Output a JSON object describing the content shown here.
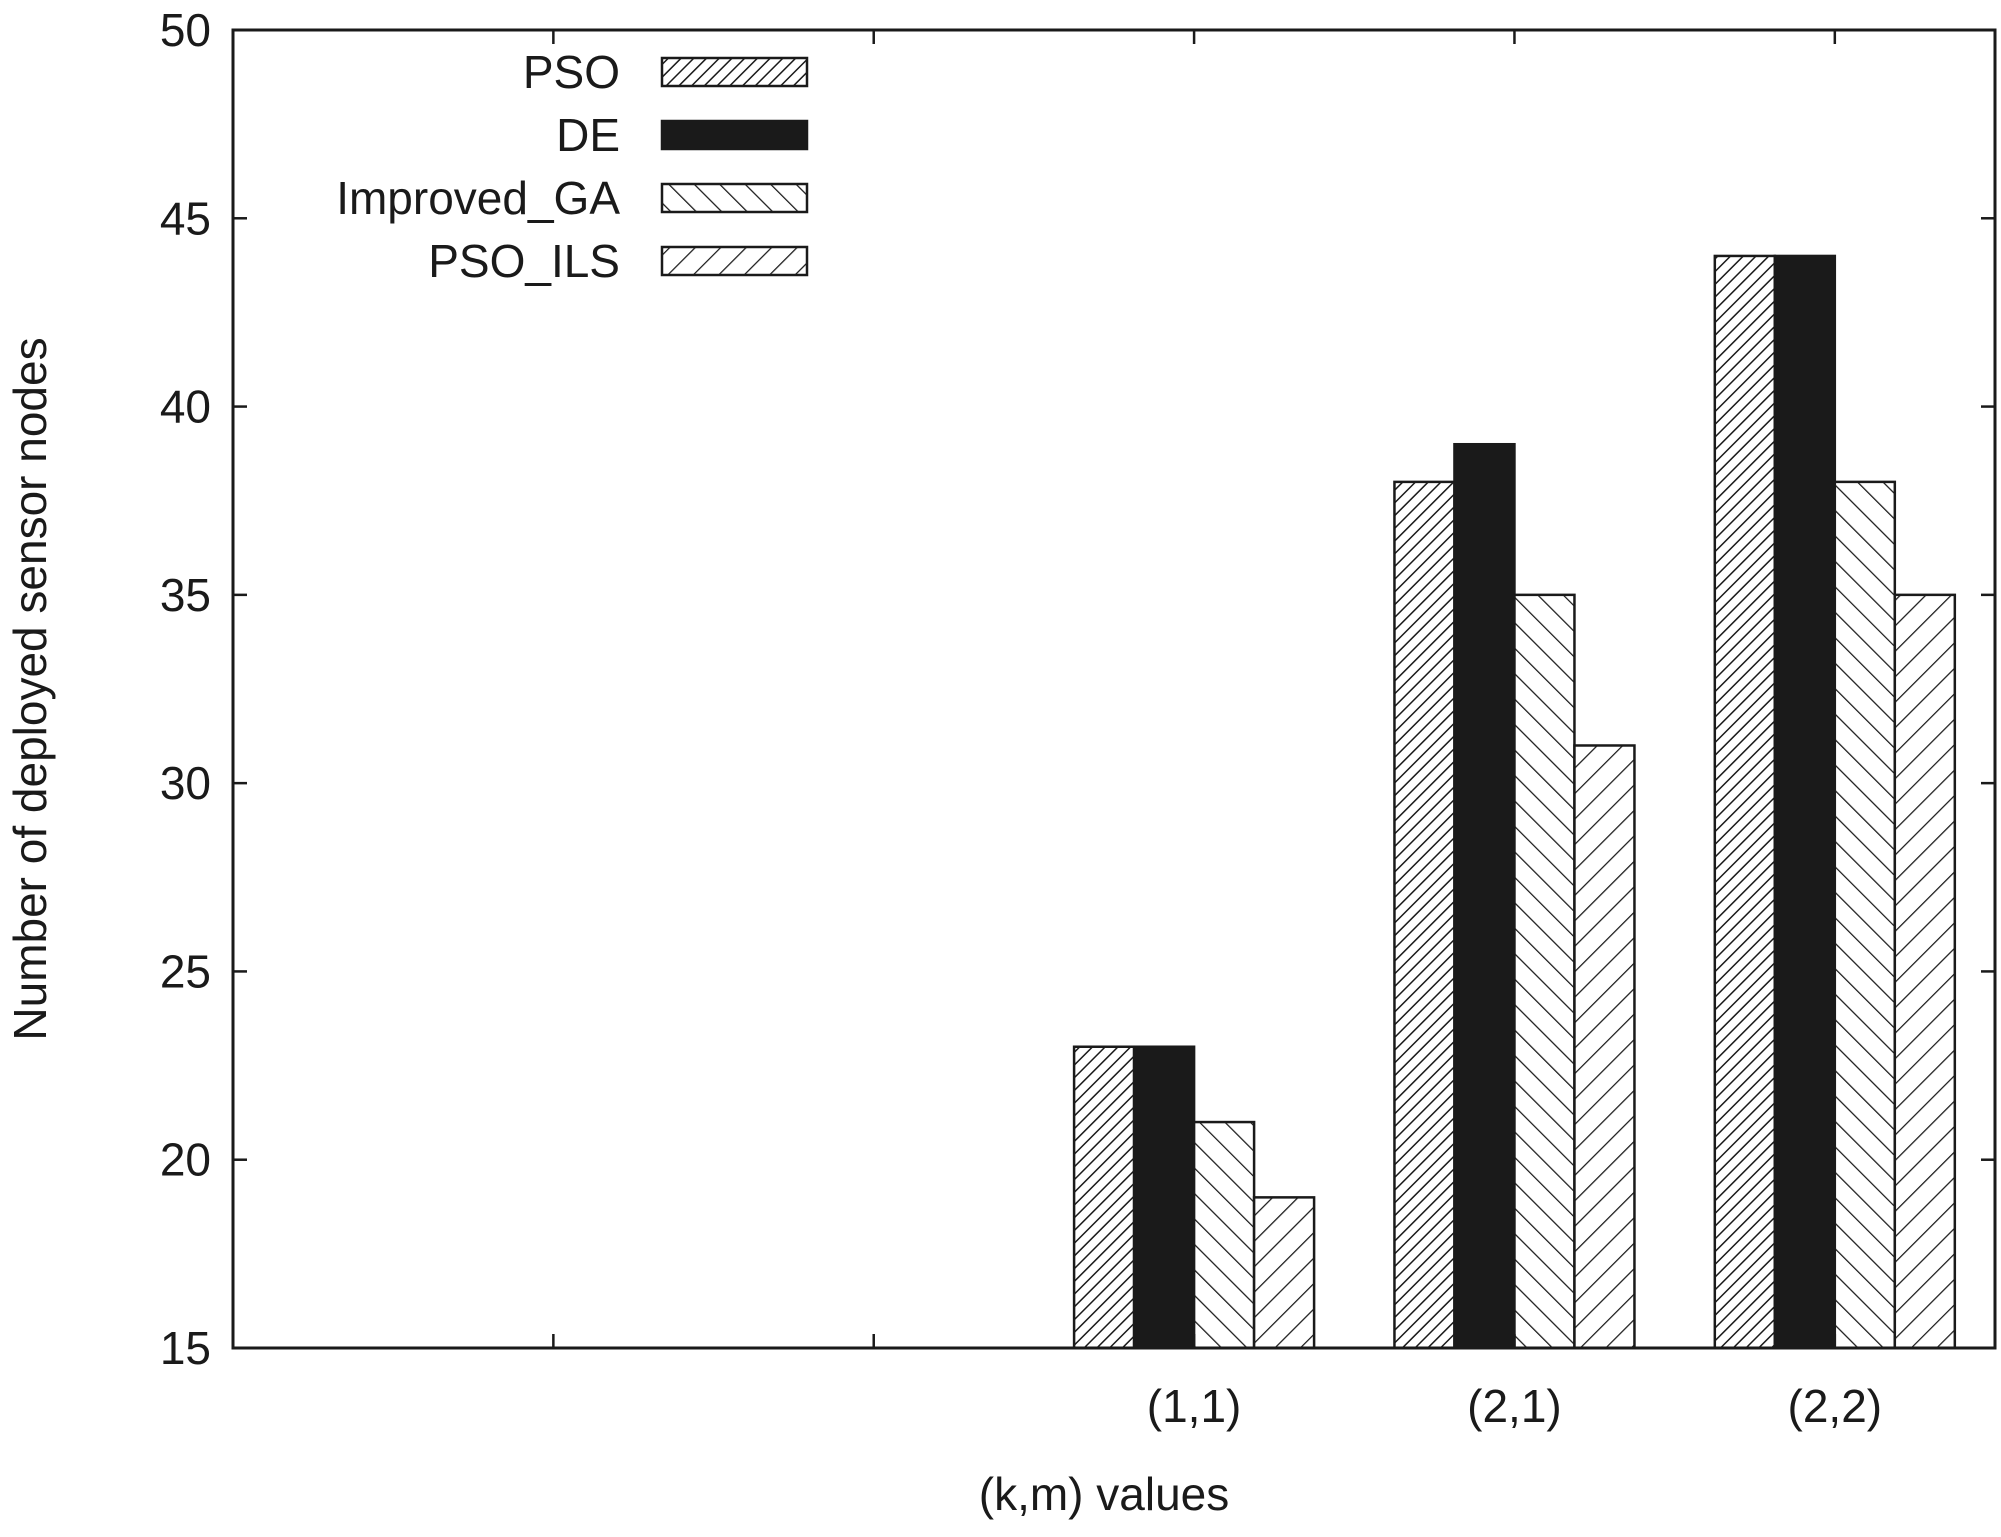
{
  "chart_data": {
    "type": "bar",
    "title": "",
    "xlabel": "(k,m) values",
    "ylabel": "Number of deployed sensor nodes",
    "categories": [
      "",
      "",
      "(1,1)",
      "(2,1)",
      "(2,2)"
    ],
    "series": [
      {
        "name": "PSO",
        "pattern": "dense-diagonal",
        "values": [
          null,
          null,
          23,
          38,
          44
        ]
      },
      {
        "name": "DE",
        "pattern": "solid",
        "values": [
          null,
          null,
          23,
          39,
          44
        ]
      },
      {
        "name": "Improved_GA",
        "pattern": "backslash",
        "values": [
          null,
          null,
          21,
          35,
          38
        ]
      },
      {
        "name": "PSO_ILS",
        "pattern": "slash",
        "values": [
          null,
          null,
          19,
          31,
          35
        ]
      }
    ],
    "ylim": [
      15,
      50
    ],
    "yticks": [
      "15",
      "20",
      "25",
      "30",
      "35",
      "40",
      "45",
      "50"
    ],
    "grid": false,
    "legend_position": "top-left",
    "colors": {
      "ink": "#1a1a1a",
      "fill": "#ffffff",
      "solid": "#1a1a1a"
    }
  }
}
